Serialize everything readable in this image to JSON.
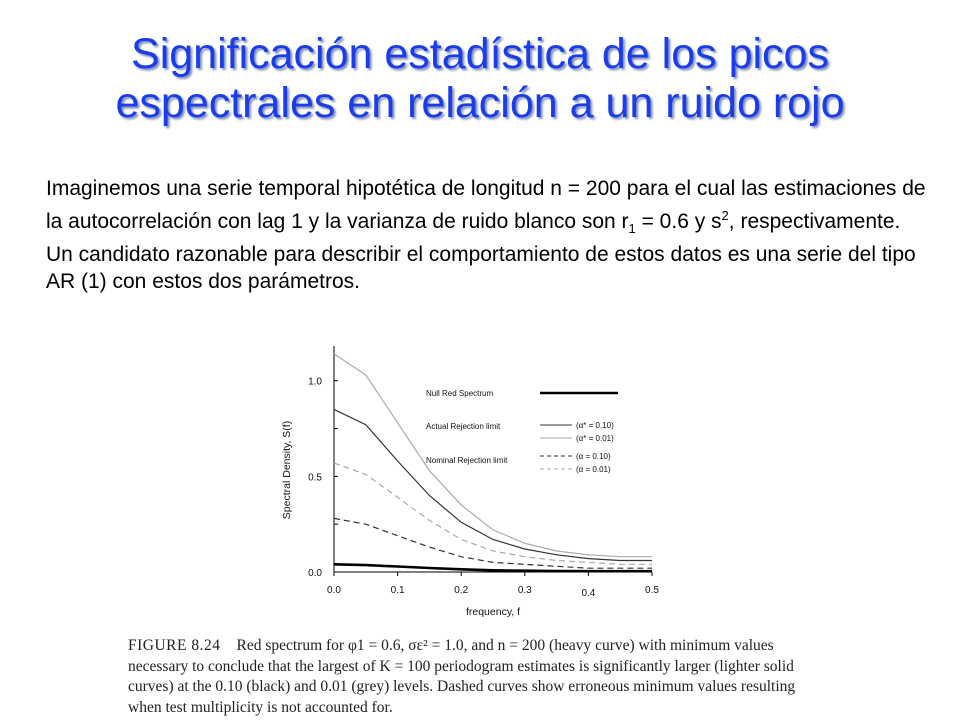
{
  "slide": {
    "title_line1": "Significación estadística de los picos",
    "title_line2": "espectrales en relación a un ruido rojo",
    "title_color": "#1a3de8",
    "paragraph": {
      "seg1": "Imaginemos una serie temporal hipotética de longitud  n = 200 para el cual las estimaciones de la autocorrelación con lag 1 y la varianza de ruido blanco son r",
      "sub1": "1",
      "seg2": " = 0.6 y s",
      "sup2": "2",
      "seg3": ", respectivamente. Un candidato razonable para describir el comportamiento de estos datos es una serie del tipo AR (1) con estos dos parámetros."
    }
  },
  "figure": {
    "caption_label": "FIGURE 8.24",
    "caption_text": "Red spectrum for φ1 = 0.6, σε² = 1.0, and n = 200 (heavy curve) with minimum values necessary to conclude that the largest of K = 100 periodogram estimates is significantly larger (lighter solid curves) at the 0.10 (black) and 0.01 (grey) levels. Dashed curves show erroneous minimum values resulting when test multiplicity is not accounted for."
  },
  "chart_data": {
    "type": "line",
    "title": "",
    "xlabel": "frequency,  f",
    "ylabel": "Spectral Density, S(f)",
    "xlim": [
      0,
      0.5
    ],
    "ylim": [
      0,
      1.15
    ],
    "x_ticks": [
      "0.0",
      "0.1",
      "0.2",
      "0.3",
      "0.4",
      "0.5"
    ],
    "y_ticks": [
      "0.0",
      "0.5",
      "1.0"
    ],
    "legend_position": "top-right",
    "legend_headers": [
      "Null Red Spectrum",
      "Actual Rejection limit",
      "Nominal Rejection limit"
    ],
    "x": [
      0.0,
      0.05,
      0.1,
      0.15,
      0.2,
      0.25,
      0.3,
      0.35,
      0.4,
      0.45,
      0.5
    ],
    "series": [
      {
        "label": "",
        "group": "Null Red Spectrum",
        "color": "#000000",
        "dash": "",
        "width": 2.6,
        "values": [
          0.04,
          0.036,
          0.029,
          0.021,
          0.014,
          0.009,
          0.007,
          0.005,
          0.004,
          0.004,
          0.004
        ]
      },
      {
        "label": "(α* = 0.10)",
        "group": "Actual Rejection limit",
        "color": "#333333",
        "dash": "",
        "width": 1.2,
        "values": [
          0.85,
          0.77,
          0.58,
          0.4,
          0.26,
          0.17,
          0.12,
          0.09,
          0.07,
          0.06,
          0.06
        ]
      },
      {
        "label": "(α* = 0.01)",
        "group": "Actual Rejection limit",
        "color": "#aaaaaa",
        "dash": "",
        "width": 1.2,
        "values": [
          1.14,
          1.03,
          0.78,
          0.53,
          0.35,
          0.22,
          0.15,
          0.11,
          0.09,
          0.08,
          0.08
        ]
      },
      {
        "label": "(α = 0.10)",
        "group": "Nominal Rejection limit",
        "color": "#333333",
        "dash": "6 4",
        "width": 1.2,
        "values": [
          0.28,
          0.25,
          0.19,
          0.13,
          0.08,
          0.05,
          0.04,
          0.03,
          0.02,
          0.02,
          0.02
        ]
      },
      {
        "label": "(α = 0.01)",
        "group": "Nominal Rejection limit",
        "color": "#aaaaaa",
        "dash": "6 4",
        "width": 1.2,
        "values": [
          0.57,
          0.51,
          0.39,
          0.27,
          0.17,
          0.11,
          0.08,
          0.06,
          0.05,
          0.04,
          0.04
        ]
      }
    ]
  }
}
